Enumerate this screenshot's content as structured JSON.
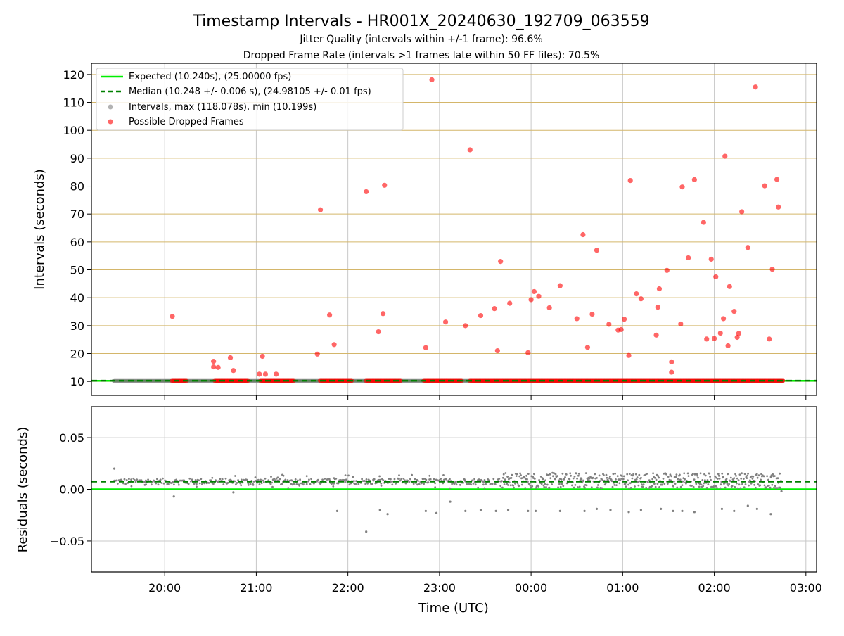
{
  "figure": {
    "title": "Timestamp Intervals - HR001X_20240630_192709_063559",
    "subtitle1": "Jitter Quality (intervals within +/-1 frame): 96.6%",
    "subtitle2": "Dropped Frame Rate (intervals >1 frames late within 50 FF files): 70.5%"
  },
  "colors": {
    "expected": "#00ee00",
    "median": "#008000",
    "interval": "#808080",
    "dropped": "#ff0000",
    "hgrid_top": "#d4b66a",
    "grid": "#c8c8c8"
  },
  "chart_data": [
    {
      "type": "scatter",
      "panel": "top",
      "ylabel": "Intervals (seconds)",
      "xlabel": "",
      "xlim": [
        "19:12",
        "03:07"
      ],
      "ylim": [
        5,
        124
      ],
      "yticks": [
        10,
        20,
        30,
        40,
        50,
        60,
        70,
        80,
        90,
        100,
        110,
        120
      ],
      "ytick_labels": [
        "10",
        "20",
        "30",
        "40",
        "50",
        "60",
        "70",
        "80",
        "90",
        "100",
        "110",
        "120"
      ],
      "grid": true,
      "legend_position": "top-left",
      "legend": [
        {
          "key": "expected",
          "label": "Expected (10.240s), (25.00000 fps)"
        },
        {
          "key": "median",
          "label": "Median (10.248 +/- 0.006 s), (24.98105 +/- 0.01 fps)"
        },
        {
          "key": "intervals",
          "label": "Intervals, max (118.078s), min (10.199s)"
        },
        {
          "key": "dropped",
          "label": "Possible Dropped Frames"
        }
      ],
      "expected_line": 10.24,
      "median_line": 10.248,
      "interval_span": [
        "19:27",
        "02:44"
      ],
      "interval_value": 10.24,
      "dropped_runs": [
        {
          "x0": "20:05",
          "x1": "20:15",
          "y": 10.3
        },
        {
          "x0": "20:33",
          "x1": "20:55",
          "y": 10.3
        },
        {
          "x0": "21:03",
          "x1": "21:25",
          "y": 10.3
        },
        {
          "x0": "21:42",
          "x1": "22:03",
          "y": 10.3
        },
        {
          "x0": "22:12",
          "x1": "22:35",
          "y": 10.3
        },
        {
          "x0": "22:50",
          "x1": "23:15",
          "y": 10.3
        },
        {
          "x0": "23:20",
          "x1": "02:45",
          "y": 10.3
        }
      ],
      "dropped_points": [
        {
          "x": "20:05",
          "y": 33.3
        },
        {
          "x": "20:32",
          "y": 17.2
        },
        {
          "x": "20:32",
          "y": 15.2
        },
        {
          "x": "20:35",
          "y": 15.0
        },
        {
          "x": "20:43",
          "y": 18.5
        },
        {
          "x": "20:45",
          "y": 13.9
        },
        {
          "x": "21:02",
          "y": 12.6
        },
        {
          "x": "21:04",
          "y": 19.0
        },
        {
          "x": "21:06",
          "y": 12.6
        },
        {
          "x": "21:13",
          "y": 12.6
        },
        {
          "x": "21:40",
          "y": 19.8
        },
        {
          "x": "21:42",
          "y": 71.5
        },
        {
          "x": "21:48",
          "y": 33.8
        },
        {
          "x": "21:51",
          "y": 23.2
        },
        {
          "x": "22:12",
          "y": 78.0
        },
        {
          "x": "22:20",
          "y": 27.8
        },
        {
          "x": "22:23",
          "y": 34.3
        },
        {
          "x": "22:24",
          "y": 80.3
        },
        {
          "x": "22:51",
          "y": 22.1
        },
        {
          "x": "22:55",
          "y": 118.1
        },
        {
          "x": "23:04",
          "y": 31.3
        },
        {
          "x": "23:17",
          "y": 30.0
        },
        {
          "x": "23:20",
          "y": 93.0
        },
        {
          "x": "23:27",
          "y": 33.6
        },
        {
          "x": "23:36",
          "y": 36.1
        },
        {
          "x": "23:38",
          "y": 21.0
        },
        {
          "x": "23:40",
          "y": 53.0
        },
        {
          "x": "23:46",
          "y": 38.0
        },
        {
          "x": "23:58",
          "y": 20.3
        },
        {
          "x": "00:00",
          "y": 39.3
        },
        {
          "x": "00:02",
          "y": 42.2
        },
        {
          "x": "00:05",
          "y": 40.5
        },
        {
          "x": "00:12",
          "y": 36.4
        },
        {
          "x": "00:19",
          "y": 44.3
        },
        {
          "x": "00:30",
          "y": 32.5
        },
        {
          "x": "00:34",
          "y": 62.6
        },
        {
          "x": "00:37",
          "y": 22.2
        },
        {
          "x": "00:40",
          "y": 34.1
        },
        {
          "x": "00:43",
          "y": 57.0
        },
        {
          "x": "00:51",
          "y": 30.5
        },
        {
          "x": "00:57",
          "y": 28.4
        },
        {
          "x": "00:59",
          "y": 28.6
        },
        {
          "x": "01:01",
          "y": 32.3
        },
        {
          "x": "01:04",
          "y": 19.3
        },
        {
          "x": "01:05",
          "y": 82.0
        },
        {
          "x": "01:09",
          "y": 41.4
        },
        {
          "x": "01:12",
          "y": 39.6
        },
        {
          "x": "01:22",
          "y": 26.6
        },
        {
          "x": "01:23",
          "y": 36.6
        },
        {
          "x": "01:24",
          "y": 43.2
        },
        {
          "x": "01:29",
          "y": 49.8
        },
        {
          "x": "01:32",
          "y": 17.0
        },
        {
          "x": "01:32",
          "y": 13.3
        },
        {
          "x": "01:38",
          "y": 30.6
        },
        {
          "x": "01:39",
          "y": 79.7
        },
        {
          "x": "01:43",
          "y": 54.3
        },
        {
          "x": "01:47",
          "y": 82.3
        },
        {
          "x": "01:53",
          "y": 67.0
        },
        {
          "x": "01:55",
          "y": 25.2
        },
        {
          "x": "01:58",
          "y": 53.8
        },
        {
          "x": "02:00",
          "y": 25.4
        },
        {
          "x": "02:01",
          "y": 47.5
        },
        {
          "x": "02:04",
          "y": 27.3
        },
        {
          "x": "02:06",
          "y": 32.5
        },
        {
          "x": "02:07",
          "y": 90.7
        },
        {
          "x": "02:09",
          "y": 22.8
        },
        {
          "x": "02:10",
          "y": 44.0
        },
        {
          "x": "02:13",
          "y": 35.1
        },
        {
          "x": "02:15",
          "y": 25.8
        },
        {
          "x": "02:16",
          "y": 27.2
        },
        {
          "x": "02:18",
          "y": 70.8
        },
        {
          "x": "02:22",
          "y": 58.0
        },
        {
          "x": "02:27",
          "y": 115.5
        },
        {
          "x": "02:33",
          "y": 80.1
        },
        {
          "x": "02:36",
          "y": 25.2
        },
        {
          "x": "02:38",
          "y": 50.2
        },
        {
          "x": "02:41",
          "y": 82.4
        },
        {
          "x": "02:42",
          "y": 72.5
        }
      ]
    },
    {
      "type": "scatter",
      "panel": "bottom",
      "ylabel": "Residuals (seconds)",
      "xlabel": "Time (UTC)",
      "xlim": [
        "19:12",
        "03:07"
      ],
      "ylim": [
        -0.08,
        0.08
      ],
      "yticks": [
        -0.05,
        0.0,
        0.05
      ],
      "ytick_labels": [
        "−0.05",
        "0.00",
        "0.05"
      ],
      "xticks": [
        "20:00",
        "21:00",
        "22:00",
        "23:00",
        "00:00",
        "01:00",
        "02:00",
        "03:00"
      ],
      "xtick_labels": [
        "20:00",
        "21:00",
        "22:00",
        "23:00",
        "00:00",
        "01:00",
        "02:00",
        "03:00"
      ],
      "grid": true,
      "zero_line": 0.0,
      "median_line": 0.0075,
      "residual_band_early": {
        "x0": "19:27",
        "x1": "23:40",
        "center": 0.0075,
        "spread": 0.006
      },
      "residual_band_late": {
        "x0": "23:40",
        "x1": "02:44",
        "low": 0.001,
        "high": 0.016
      },
      "residual_outliers": [
        {
          "x": "19:27",
          "y": 0.02
        },
        {
          "x": "20:06",
          "y": -0.007
        },
        {
          "x": "20:45",
          "y": -0.003
        },
        {
          "x": "21:53",
          "y": -0.021
        },
        {
          "x": "22:12",
          "y": -0.041
        },
        {
          "x": "22:21",
          "y": -0.02
        },
        {
          "x": "22:26",
          "y": -0.024
        },
        {
          "x": "22:51",
          "y": -0.021
        },
        {
          "x": "22:58",
          "y": -0.023
        },
        {
          "x": "23:07",
          "y": -0.012
        },
        {
          "x": "23:17",
          "y": -0.021
        },
        {
          "x": "23:27",
          "y": -0.02
        },
        {
          "x": "23:37",
          "y": -0.021
        },
        {
          "x": "23:45",
          "y": -0.02
        },
        {
          "x": "23:58",
          "y": -0.021
        },
        {
          "x": "00:03",
          "y": -0.021
        },
        {
          "x": "00:19",
          "y": -0.021
        },
        {
          "x": "00:35",
          "y": -0.021
        },
        {
          "x": "00:43",
          "y": -0.019
        },
        {
          "x": "00:52",
          "y": -0.02
        },
        {
          "x": "01:04",
          "y": -0.022
        },
        {
          "x": "01:12",
          "y": -0.02
        },
        {
          "x": "01:25",
          "y": -0.019
        },
        {
          "x": "01:33",
          "y": -0.021
        },
        {
          "x": "01:39",
          "y": -0.021
        },
        {
          "x": "01:47",
          "y": -0.022
        },
        {
          "x": "02:05",
          "y": -0.019
        },
        {
          "x": "02:13",
          "y": -0.021
        },
        {
          "x": "02:22",
          "y": -0.016
        },
        {
          "x": "02:28",
          "y": -0.019
        },
        {
          "x": "02:37",
          "y": -0.024
        },
        {
          "x": "02:44",
          "y": -0.002
        }
      ]
    }
  ]
}
